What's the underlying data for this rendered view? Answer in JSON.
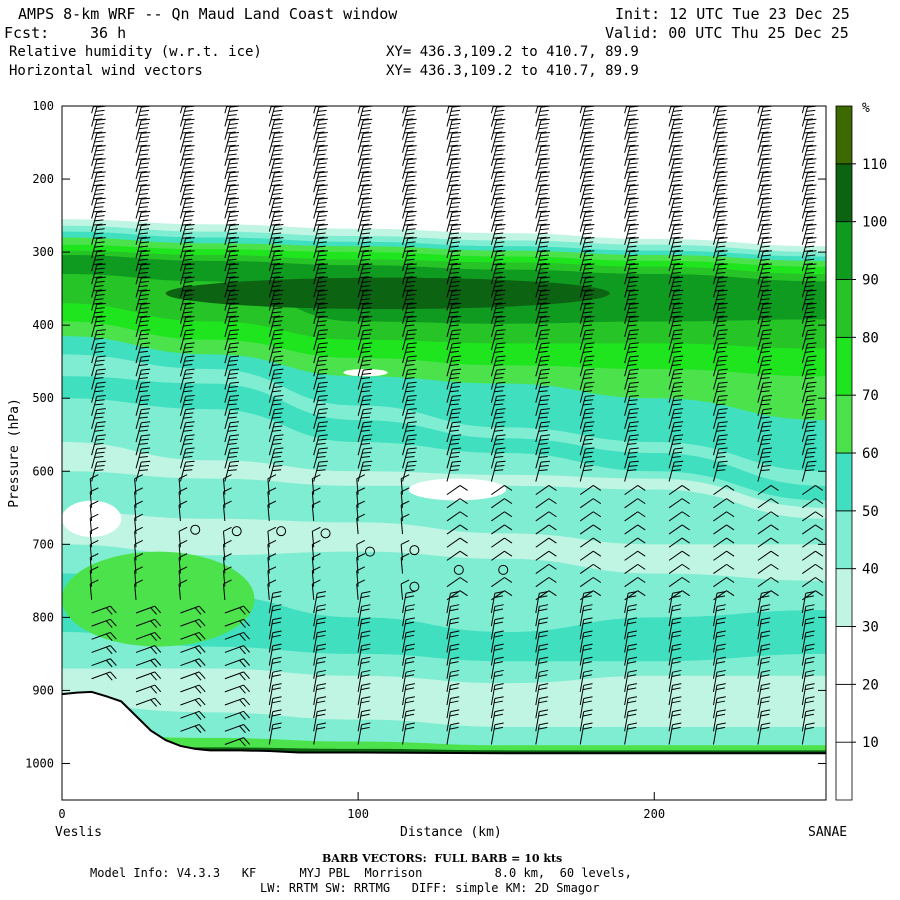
{
  "header": {
    "title": "AMPS 8-km WRF -- Qn Maud Land Coast window",
    "init": "Init: 12 UTC Tue 23 Dec 25",
    "fcst_label": "Fcst:",
    "fcst_value": "36 h",
    "valid": "Valid: 00 UTC Thu 25 Dec 25",
    "field1": "Relative humidity (w.r.t. ice)",
    "field1_xy": "XY= 436.3,109.2 to 410.7, 89.9",
    "field2": "Horizontal wind vectors",
    "field2_xy": "XY= 436.3,109.2 to 410.7, 89.9"
  },
  "footer": {
    "left_endpoint": "Veslis",
    "right_endpoint": "SANAE",
    "barb_note": "BARB VECTORS:  FULL BARB = 10 kts",
    "model_info_line1": "Model Info: V4.3.3   KF      MYJ PBL  Morrison          8.0 km,  60 levels,",
    "model_info_line2": "LW: RRTM SW: RRTMG   DIFF: simple KM: 2D Smagor"
  },
  "colors": {
    "c0": "#ffffff",
    "c10": "#ffffff",
    "c20": "#ffffff",
    "c30": "#bff5e2",
    "c40": "#7fedd2",
    "c50": "#3fdfbf",
    "c60": "#4ce24c",
    "c70": "#1fe51f",
    "c80": "#26c426",
    "c90": "#0f9a20",
    "c100": "#0c6412",
    "c110": "#3c6a00",
    "c120": "#c81e00",
    "terrain": "#000000"
  },
  "chart_data": {
    "type": "heatmap",
    "title": "Relative humidity (w.r.t. ice) and horizontal wind vectors",
    "xlabel": "Distance (km)",
    "ylabel": "Pressure (hPa)",
    "xlim": [
      0,
      258
    ],
    "ylim": [
      1050,
      100
    ],
    "x_ticks": [
      0,
      100,
      200
    ],
    "y_ticks": [
      100,
      200,
      300,
      400,
      500,
      600,
      700,
      800,
      900,
      1000
    ],
    "colorbar": {
      "unit": "%",
      "levels": [
        0,
        10,
        20,
        30,
        40,
        50,
        60,
        70,
        80,
        90,
        100,
        110,
        120
      ],
      "labels": [
        "10",
        "20",
        "30",
        "40",
        "50",
        "60",
        "70",
        "80",
        "90",
        "100",
        "110"
      ]
    },
    "rh_bands": [
      {
        "pressures": [
          255,
          262,
          268,
          274,
          282,
          292
        ],
        "rh": 30
      },
      {
        "pressures": [
          264,
          272,
          278,
          284,
          290,
          300
        ],
        "rh": 40
      },
      {
        "pressures": [
          272,
          280,
          286,
          292,
          298,
          306
        ],
        "rh": 50
      },
      {
        "pressures": [
          280,
          288,
          292,
          298,
          304,
          312
        ],
        "rh": 60
      },
      {
        "pressures": [
          290,
          296,
          300,
          306,
          312,
          320
        ],
        "rh": 70
      },
      {
        "pressures": [
          298,
          304,
          310,
          314,
          320,
          330
        ],
        "rh": 80
      },
      {
        "pressures": [
          304,
          312,
          318,
          324,
          330,
          340
        ],
        "rh": 90
      },
      {
        "pressures": [
          330,
          340,
          395,
          398,
          395,
          392
        ],
        "rh": 80
      },
      {
        "pressures": [
          370,
          395,
          420,
          425,
          425,
          432
        ],
        "rh": 70
      },
      {
        "pressures": [
          395,
          420,
          445,
          455,
          460,
          470
        ],
        "rh": 60
      },
      {
        "pressures": [
          415,
          440,
          470,
          480,
          500,
          530
        ],
        "rh": 50
      },
      {
        "pressures": [
          440,
          460,
          510,
          540,
          560,
          600
        ],
        "rh": 40
      },
      {
        "pressures": [
          470,
          480,
          530,
          555,
          575,
          620
        ],
        "rh": 50
      },
      {
        "pressures": [
          500,
          515,
          560,
          575,
          600,
          640
        ],
        "rh": 40
      },
      {
        "pressures": [
          560,
          585,
          600,
          605,
          610,
          650
        ],
        "rh": 30
      },
      {
        "pressures": [
          600,
          610,
          620,
          620,
          625,
          665
        ],
        "rh": 40
      },
      {
        "pressures": [
          655,
          665,
          670,
          685,
          700,
          700
        ],
        "rh": 30
      },
      {
        "pressures": [
          700,
          715,
          710,
          720,
          740,
          750
        ],
        "rh": 40
      },
      {
        "pressures": [
          740,
          770,
          800,
          820,
          800,
          790
        ],
        "rh": 50
      },
      {
        "pressures": [
          820,
          840,
          850,
          860,
          860,
          850
        ],
        "rh": 40
      },
      {
        "pressures": [
          870,
          870,
          880,
          890,
          880,
          880
        ],
        "rh": 30
      },
      {
        "pressures": [
          920,
          930,
          940,
          950,
          950,
          950
        ],
        "rh": 40
      },
      {
        "pressures": [
          960,
          965,
          970,
          975,
          975,
          975
        ],
        "rh": 60
      },
      {
        "pressures": [
          975,
          978,
          980,
          982,
          982,
          982
        ],
        "rh": 100
      }
    ],
    "rh_band_distances": [
      0,
      50,
      100,
      150,
      200,
      258
    ],
    "rh_patches": [
      {
        "type": "core_90",
        "distance": [
          35,
          185
        ],
        "pressure": [
          335,
          378
        ],
        "rh": 100
      },
      {
        "type": "moist_70",
        "distance": [
          0,
          40
        ],
        "pressure": [
          730,
          820
        ],
        "rh": 70
      },
      {
        "type": "moist_60",
        "distance": [
          0,
          65
        ],
        "pressure": [
          710,
          840
        ],
        "rh": 60
      },
      {
        "type": "dry_pocket",
        "distance": [
          0,
          20
        ],
        "pressure": [
          640,
          690
        ],
        "rh": 20
      },
      {
        "type": "dry_pocket",
        "distance": [
          117,
          150
        ],
        "pressure": [
          610,
          640
        ],
        "rh": 20
      },
      {
        "type": "dry_pocket",
        "distance": [
          95,
          110
        ],
        "pressure": [
          460,
          470
        ],
        "rh": 20
      }
    ],
    "terrain_surface": {
      "distance": [
        0,
        5,
        10,
        15,
        20,
        25,
        30,
        35,
        40,
        45,
        50,
        60,
        70,
        80,
        100,
        150,
        200,
        258
      ],
      "pressure": [
        905,
        903,
        902,
        908,
        915,
        935,
        955,
        968,
        976,
        980,
        982,
        982,
        983,
        985,
        985,
        986,
        986,
        986
      ]
    },
    "wind_calm_points": [
      {
        "distance": 45,
        "pressure": 680
      },
      {
        "distance": 59,
        "pressure": 682
      },
      {
        "distance": 74,
        "pressure": 682
      },
      {
        "distance": 89,
        "pressure": 685
      },
      {
        "distance": 104,
        "pressure": 710
      },
      {
        "distance": 119,
        "pressure": 708
      },
      {
        "distance": 119,
        "pressure": 758
      },
      {
        "distance": 134,
        "pressure": 735
      },
      {
        "distance": 149,
        "pressure": 735
      }
    ]
  }
}
